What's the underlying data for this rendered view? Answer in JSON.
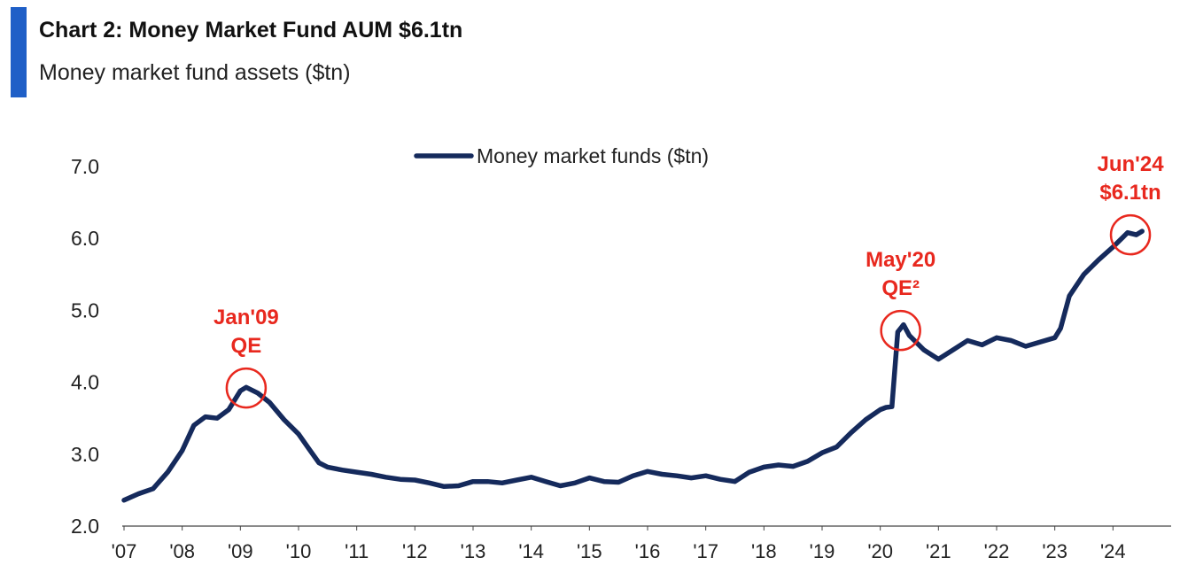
{
  "header": {
    "title": "Chart 2: Money Market Fund AUM $6.1tn",
    "subtitle": "Money market fund assets ($tn)",
    "accent_color": "#1f5fc7"
  },
  "chart_data": {
    "type": "line",
    "title": "Chart 2: Money Market Fund AUM $6.1tn",
    "subtitle": "Money market fund assets ($tn)",
    "xlabel": "",
    "ylabel": "",
    "ylim": [
      2.0,
      7.0
    ],
    "xlim": [
      2007.0,
      2025.0
    ],
    "yticks": [
      2.0,
      3.0,
      4.0,
      5.0,
      6.0,
      7.0
    ],
    "ytick_labels": [
      "2.0",
      "3.0",
      "4.0",
      "5.0",
      "6.0",
      "7.0"
    ],
    "xticks": [
      2007,
      2008,
      2009,
      2010,
      2011,
      2012,
      2013,
      2014,
      2015,
      2016,
      2017,
      2018,
      2019,
      2020,
      2021,
      2022,
      2023,
      2024
    ],
    "xtick_labels": [
      "'07",
      "'08",
      "'09",
      "'10",
      "'11",
      "'12",
      "'13",
      "'14",
      "'15",
      "'16",
      "'17",
      "'18",
      "'19",
      "'20",
      "'21",
      "'22",
      "'23",
      "'24"
    ],
    "grid": false,
    "legend": {
      "position": "top-center",
      "entries": [
        "Money market funds ($tn)"
      ]
    },
    "series": [
      {
        "name": "Money market funds ($tn)",
        "color": "#152a5c",
        "x": [
          2007.0,
          2007.25,
          2007.5,
          2007.75,
          2008.0,
          2008.2,
          2008.4,
          2008.6,
          2008.8,
          2009.0,
          2009.1,
          2009.3,
          2009.5,
          2009.75,
          2010.0,
          2010.2,
          2010.35,
          2010.5,
          2010.75,
          2011.0,
          2011.25,
          2011.5,
          2011.75,
          2012.0,
          2012.25,
          2012.5,
          2012.75,
          2013.0,
          2013.25,
          2013.5,
          2013.75,
          2014.0,
          2014.25,
          2014.5,
          2014.75,
          2015.0,
          2015.25,
          2015.5,
          2015.75,
          2016.0,
          2016.25,
          2016.5,
          2016.75,
          2017.0,
          2017.25,
          2017.5,
          2017.75,
          2018.0,
          2018.25,
          2018.5,
          2018.75,
          2019.0,
          2019.25,
          2019.5,
          2019.75,
          2020.0,
          2020.1,
          2020.2,
          2020.3,
          2020.4,
          2020.5,
          2020.75,
          2021.0,
          2021.25,
          2021.5,
          2021.75,
          2022.0,
          2022.25,
          2022.5,
          2022.75,
          2023.0,
          2023.1,
          2023.25,
          2023.5,
          2023.75,
          2024.0,
          2024.25,
          2024.4,
          2024.5
        ],
        "values": [
          2.36,
          2.45,
          2.52,
          2.75,
          3.05,
          3.4,
          3.52,
          3.5,
          3.62,
          3.88,
          3.93,
          3.85,
          3.72,
          3.48,
          3.28,
          3.05,
          2.88,
          2.82,
          2.78,
          2.75,
          2.72,
          2.68,
          2.65,
          2.64,
          2.6,
          2.55,
          2.56,
          2.62,
          2.62,
          2.6,
          2.64,
          2.68,
          2.62,
          2.56,
          2.6,
          2.67,
          2.62,
          2.61,
          2.7,
          2.76,
          2.72,
          2.7,
          2.67,
          2.7,
          2.65,
          2.62,
          2.75,
          2.82,
          2.85,
          2.83,
          2.9,
          3.02,
          3.1,
          3.3,
          3.48,
          3.62,
          3.65,
          3.66,
          4.7,
          4.8,
          4.65,
          4.45,
          4.32,
          4.45,
          4.58,
          4.52,
          4.62,
          4.58,
          4.5,
          4.56,
          4.62,
          4.75,
          5.2,
          5.5,
          5.7,
          5.88,
          6.08,
          6.05,
          6.1
        ]
      }
    ],
    "annotations": [
      {
        "lines": [
          "Jan'09",
          "QE"
        ],
        "x": 2009.1,
        "y": 3.92,
        "color": "#e8281e"
      },
      {
        "lines": [
          "May'20",
          "QE²"
        ],
        "x": 2020.35,
        "y": 4.72,
        "color": "#e8281e"
      },
      {
        "lines": [
          "Jun'24",
          "$6.1tn"
        ],
        "x": 2024.3,
        "y": 6.05,
        "color": "#e8281e"
      }
    ]
  }
}
